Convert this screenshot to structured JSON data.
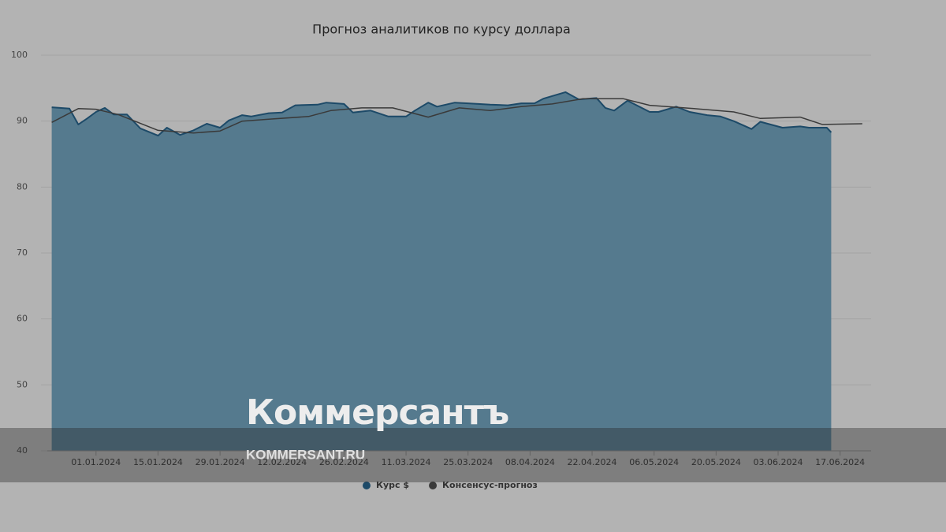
{
  "chart_data": {
    "type": "area-line",
    "title": "Прогноз аналитиков по курсу доллара",
    "x": [
      "22.12.2023",
      "26.12.2023",
      "28.12.2023",
      "30.12.2023",
      "01.01.2024",
      "03.01.2024",
      "05.01.2024",
      "08.01.2024",
      "11.01.2024",
      "15.01.2024",
      "17.01.2024",
      "20.01.2024",
      "23.01.2024",
      "26.01.2024",
      "29.01.2024",
      "31.01.2024",
      "03.02.2024",
      "05.02.2024",
      "09.02.2024",
      "12.02.2024",
      "15.02.2024",
      "20.02.2024",
      "22.02.2024",
      "26.02.2024",
      "28.02.2024",
      "03.03.2024",
      "07.03.2024",
      "11.03.2024",
      "13.03.2024",
      "16.03.2024",
      "18.03.2024",
      "22.03.2024",
      "25.03.2024",
      "30.03.2024",
      "03.04.2024",
      "06.04.2024",
      "09.04.2024",
      "11.04.2024",
      "16.04.2024",
      "19.04.2024",
      "23.04.2024",
      "25.04.2024",
      "27.04.2024",
      "30.04.2024",
      "05.05.2024",
      "07.05.2024",
      "11.05.2024",
      "14.05.2024",
      "18.05.2024",
      "21.05.2024",
      "24.05.2024",
      "28.05.2024",
      "30.05.2024",
      "04.06.2024",
      "08.06.2024",
      "10.06.2024",
      "14.06.2024",
      "15.06.2024"
    ],
    "series": [
      {
        "name": "Курс $",
        "color": "#1d4a68",
        "fill": "#557a8e",
        "values": [
          92.1,
          91.9,
          89.5,
          90.4,
          91.4,
          92.0,
          91.0,
          91.0,
          88.9,
          87.8,
          89.0,
          87.9,
          88.6,
          89.6,
          89.0,
          90.1,
          90.9,
          90.7,
          91.2,
          91.3,
          92.4,
          92.5,
          92.8,
          92.6,
          91.3,
          91.6,
          90.7,
          90.7,
          91.6,
          92.8,
          92.2,
          92.8,
          92.7,
          92.5,
          92.4,
          92.7,
          92.7,
          93.4,
          94.4,
          93.3,
          93.5,
          92.0,
          91.6,
          93.1,
          91.4,
          91.4,
          92.2,
          91.4,
          90.9,
          90.7,
          90.0,
          88.8,
          89.9,
          89.0,
          89.2,
          89.0,
          89.0,
          88.3
        ]
      },
      {
        "name": "Консенсус-прогноз",
        "color": "#3a3a3a",
        "x": [
          "22.12.2023",
          "28.12.2023",
          "01.01.2024",
          "06.01.2024",
          "15.01.2024",
          "23.01.2024",
          "29.01.2024",
          "03.02.2024",
          "09.02.2024",
          "18.02.2024",
          "23.02.2024",
          "01.03.2024",
          "08.03.2024",
          "16.03.2024",
          "23.03.2024",
          "30.03.2024",
          "06.04.2024",
          "13.04.2024",
          "20.04.2024",
          "29.04.2024",
          "05.05.2024",
          "15.05.2024",
          "24.05.2024",
          "30.05.2024",
          "08.06.2024",
          "13.06.2024",
          "22.06.2024"
        ],
        "values": [
          89.8,
          91.9,
          91.8,
          91.0,
          88.6,
          88.2,
          88.5,
          90.0,
          90.3,
          90.7,
          91.6,
          92.0,
          92.0,
          90.6,
          92.0,
          91.6,
          92.2,
          92.6,
          93.4,
          93.4,
          92.4,
          91.9,
          91.4,
          90.4,
          90.6,
          89.5,
          89.6
        ]
      }
    ],
    "xlim": [
      "21.12.2023",
      "24.06.2024"
    ],
    "xticks": [
      "01.01.2024",
      "15.01.2024",
      "29.01.2024",
      "12.02.2024",
      "26.02.2024",
      "11.03.2024",
      "25.03.2024",
      "08.04.2024",
      "22.04.2024",
      "06.05.2024",
      "20.05.2024",
      "03.06.2024",
      "17.06.2024"
    ],
    "ylim": [
      40,
      100
    ],
    "yticks": [
      40,
      50,
      60,
      70,
      80,
      90,
      100
    ],
    "grid": true
  },
  "watermark": {
    "brand": "Коммерсантъ",
    "site": "KOMMERSANT.RU"
  }
}
